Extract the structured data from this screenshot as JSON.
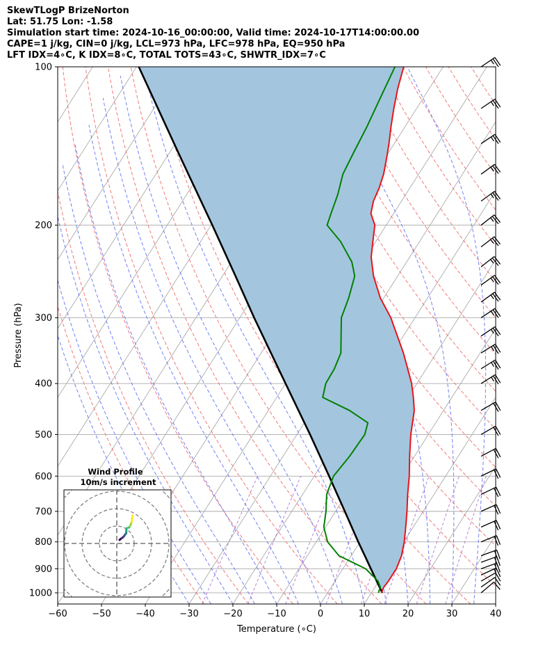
{
  "header": {
    "line1": "SkewTLogP BrizeNorton",
    "line2": "Lat: 51.75   Lon: -1.58",
    "line3": "Simulation start time: 2024-10-16_00:00:00, Valid time: 2024-10-17T14:00:00.00",
    "line4": "CAPE=1 j/kg, CIN=0 j/kg, LCL=973 hPa, LFC=978 hPa, EQ=950 hPa",
    "line5": "LFT IDX=4∘C, K IDX=8∘C, TOTAL TOTS=43∘C, SHWTR_IDX=7∘C"
  },
  "chart_data": {
    "type": "line",
    "xlabel": "Temperature (∘C)",
    "ylabel": "Pressure (hPa)",
    "xlim": [
      -60,
      40
    ],
    "ylim": [
      1050,
      100
    ],
    "yscale": "log",
    "grid": true,
    "x_ticks": [
      "−60",
      "−50",
      "−40",
      "−30",
      "−20",
      "−10",
      "0",
      "10",
      "20",
      "30",
      "40"
    ],
    "x_tick_values": [
      -60,
      -50,
      -40,
      -30,
      -20,
      -10,
      0,
      10,
      20,
      30,
      40
    ],
    "y_ticks": [
      "100",
      "200",
      "300",
      "400",
      "500",
      "600",
      "700",
      "800",
      "900",
      "1000"
    ],
    "y_tick_values": [
      100,
      200,
      300,
      400,
      500,
      600,
      700,
      800,
      900,
      1000
    ],
    "colors": {
      "temperature": "#e8131a",
      "dewpoint": "#008000",
      "parcel": "#000000",
      "cape_fill": "#a3c6de",
      "dry_adiabat": "#f06a6a",
      "moist_adiabat": "#5a6cf0",
      "mixing_ratio": "#9b4fc8",
      "isotherm": "#aaaaaa"
    },
    "series": [
      {
        "key": "temperature",
        "pressure": [
          1000,
          975,
          950,
          900,
          850,
          800,
          750,
          700,
          650,
          600,
          550,
          500,
          450,
          425,
          400,
          350,
          300,
          275,
          250,
          230,
          210,
          200,
          190,
          180,
          170,
          160,
          150,
          140,
          130,
          120,
          110,
          100
        ],
        "temp": [
          12.3,
          12.0,
          12.2,
          12.2,
          11.5,
          10.1,
          8.3,
          6.3,
          4.0,
          1.7,
          -1.1,
          -4.0,
          -6.7,
          -8.8,
          -11.2,
          -17.5,
          -25.5,
          -30.8,
          -35.5,
          -38.8,
          -41.3,
          -42.6,
          -45.2,
          -46.4,
          -47.0,
          -48.0,
          -49.5,
          -51.2,
          -53.2,
          -55.2,
          -57.2,
          -59.0
        ]
      },
      {
        "key": "dewpoint",
        "pressure": [
          1000,
          975,
          950,
          900,
          850,
          800,
          750,
          700,
          650,
          600,
          550,
          500,
          475,
          450,
          425,
          400,
          375,
          350,
          325,
          300,
          275,
          250,
          235,
          215,
          200,
          190,
          175,
          160,
          145,
          130,
          115,
          100
        ],
        "temp": [
          11.6,
          11.2,
          9.8,
          5.2,
          -2.8,
          -7.4,
          -10.4,
          -12.2,
          -14.5,
          -15.6,
          -14.8,
          -14.5,
          -15.5,
          -21.5,
          -29.5,
          -30.8,
          -31.0,
          -31.8,
          -34.2,
          -36.8,
          -38.0,
          -39.8,
          -42.5,
          -48.0,
          -53.5,
          -54.3,
          -55.5,
          -57.3,
          -58.0,
          -58.7,
          -59.8,
          -61.0
        ]
      },
      {
        "key": "parcel",
        "pressure": [
          1000,
          950,
          900,
          850,
          800,
          700,
          600,
          500,
          400,
          300,
          250,
          200,
          150,
          100
        ],
        "temp": [
          12.5,
          9.5,
          6.4,
          3.1,
          -0.4,
          -7.9,
          -16.6,
          -27.0,
          -40.0,
          -56.7,
          -67.0,
          -79.7,
          -96.3,
          -119.5
        ]
      }
    ],
    "winds": {
      "pressure": [
        1000,
        975,
        950,
        925,
        900,
        875,
        850,
        800,
        750,
        700,
        650,
        600,
        550,
        500,
        450,
        400,
        375,
        350,
        325,
        300,
        280,
        260,
        240,
        220,
        200,
        180,
        160,
        140,
        120,
        100
      ],
      "speed_kt": [
        10,
        12,
        14,
        16,
        18,
        20,
        20,
        20,
        20,
        21,
        21,
        22,
        22,
        23,
        24,
        25,
        26,
        26,
        27,
        27,
        28,
        28,
        28,
        28,
        28,
        28,
        29,
        29,
        29,
        29
      ],
      "direction_deg": [
        230,
        235,
        240,
        245,
        250,
        250,
        250,
        248,
        246,
        246,
        244,
        244,
        242,
        240,
        240,
        238,
        238,
        238,
        236,
        236,
        234,
        234,
        232,
        232,
        232,
        234,
        234,
        236,
        236,
        236
      ]
    },
    "inset": {
      "title": "Wind Profile",
      "subtitle": "10m/s increment",
      "u": [
        0.0,
        0.5,
        1.2,
        2.0,
        2.8,
        3.2,
        3.6,
        3.8,
        3.9,
        3.9,
        4.2,
        5.5,
        6.0,
        6.5,
        7.0,
        7.2,
        7.4
      ],
      "v": [
        0.0,
        0.5,
        1.0,
        1.6,
        2.5,
        3.2,
        3.5,
        4.0,
        5.0,
        6.2,
        6.8,
        7.2,
        8.0,
        9.0,
        10.5,
        12.0,
        14.0
      ]
    }
  }
}
